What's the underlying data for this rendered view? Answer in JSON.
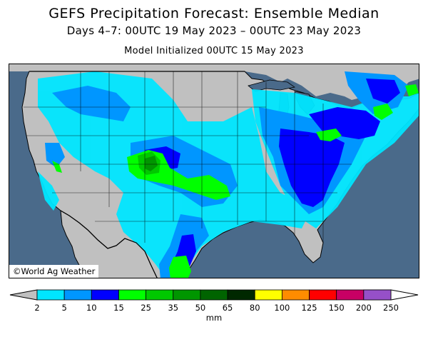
{
  "header": {
    "title": "GEFS Precipitation Forecast: Ensemble Median",
    "period": "Days 4–7: 00UTC 19 May 2023 – 00UTC 23 May 2023",
    "init": "Model Initialized 00UTC 15 May 2023"
  },
  "map": {
    "credit": "©World Ag Weather",
    "ocean_color": "#4a6a8a",
    "land_color": "#c0c0c0",
    "border_color": "#000000"
  },
  "legend": {
    "unit": "mm",
    "ticks": [
      "2",
      "5",
      "10",
      "15",
      "25",
      "35",
      "50",
      "65",
      "80",
      "100",
      "125",
      "150",
      "200",
      "250"
    ],
    "colors": [
      "#00e6ff",
      "#0096ff",
      "#0000ff",
      "#00ff00",
      "#00c800",
      "#009600",
      "#006400",
      "#002800",
      "#ffff00",
      "#ff8c00",
      "#ff0000",
      "#c80064",
      "#ff00ff",
      "#9650c8"
    ],
    "below_color": "#c0c0c0",
    "above_color": "#ffffff"
  }
}
